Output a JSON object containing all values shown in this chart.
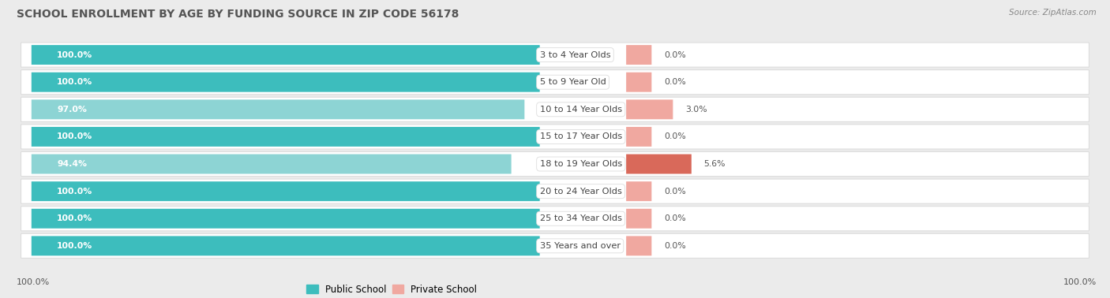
{
  "title": "SCHOOL ENROLLMENT BY AGE BY FUNDING SOURCE IN ZIP CODE 56178",
  "source": "Source: ZipAtlas.com",
  "categories": [
    "3 to 4 Year Olds",
    "5 to 9 Year Old",
    "10 to 14 Year Olds",
    "15 to 17 Year Olds",
    "18 to 19 Year Olds",
    "20 to 24 Year Olds",
    "25 to 34 Year Olds",
    "35 Years and over"
  ],
  "public_values": [
    100.0,
    100.0,
    97.0,
    100.0,
    94.4,
    100.0,
    100.0,
    100.0
  ],
  "private_values": [
    0.0,
    0.0,
    3.0,
    0.0,
    5.6,
    0.0,
    0.0,
    0.0
  ],
  "public_color_full": "#3DBDBD",
  "public_color_partial": "#8DD4D4",
  "private_color_strong": "#D9695A",
  "private_color_light": "#F0A8A0",
  "row_bg_color": "#FFFFFF",
  "row_border_color": "#DDDDDD",
  "fig_bg_color": "#EBEBEB",
  "title_color": "#555555",
  "label_color": "#555555",
  "source_color": "#888888",
  "x_left_label": "100.0%",
  "x_right_label": "100.0%"
}
